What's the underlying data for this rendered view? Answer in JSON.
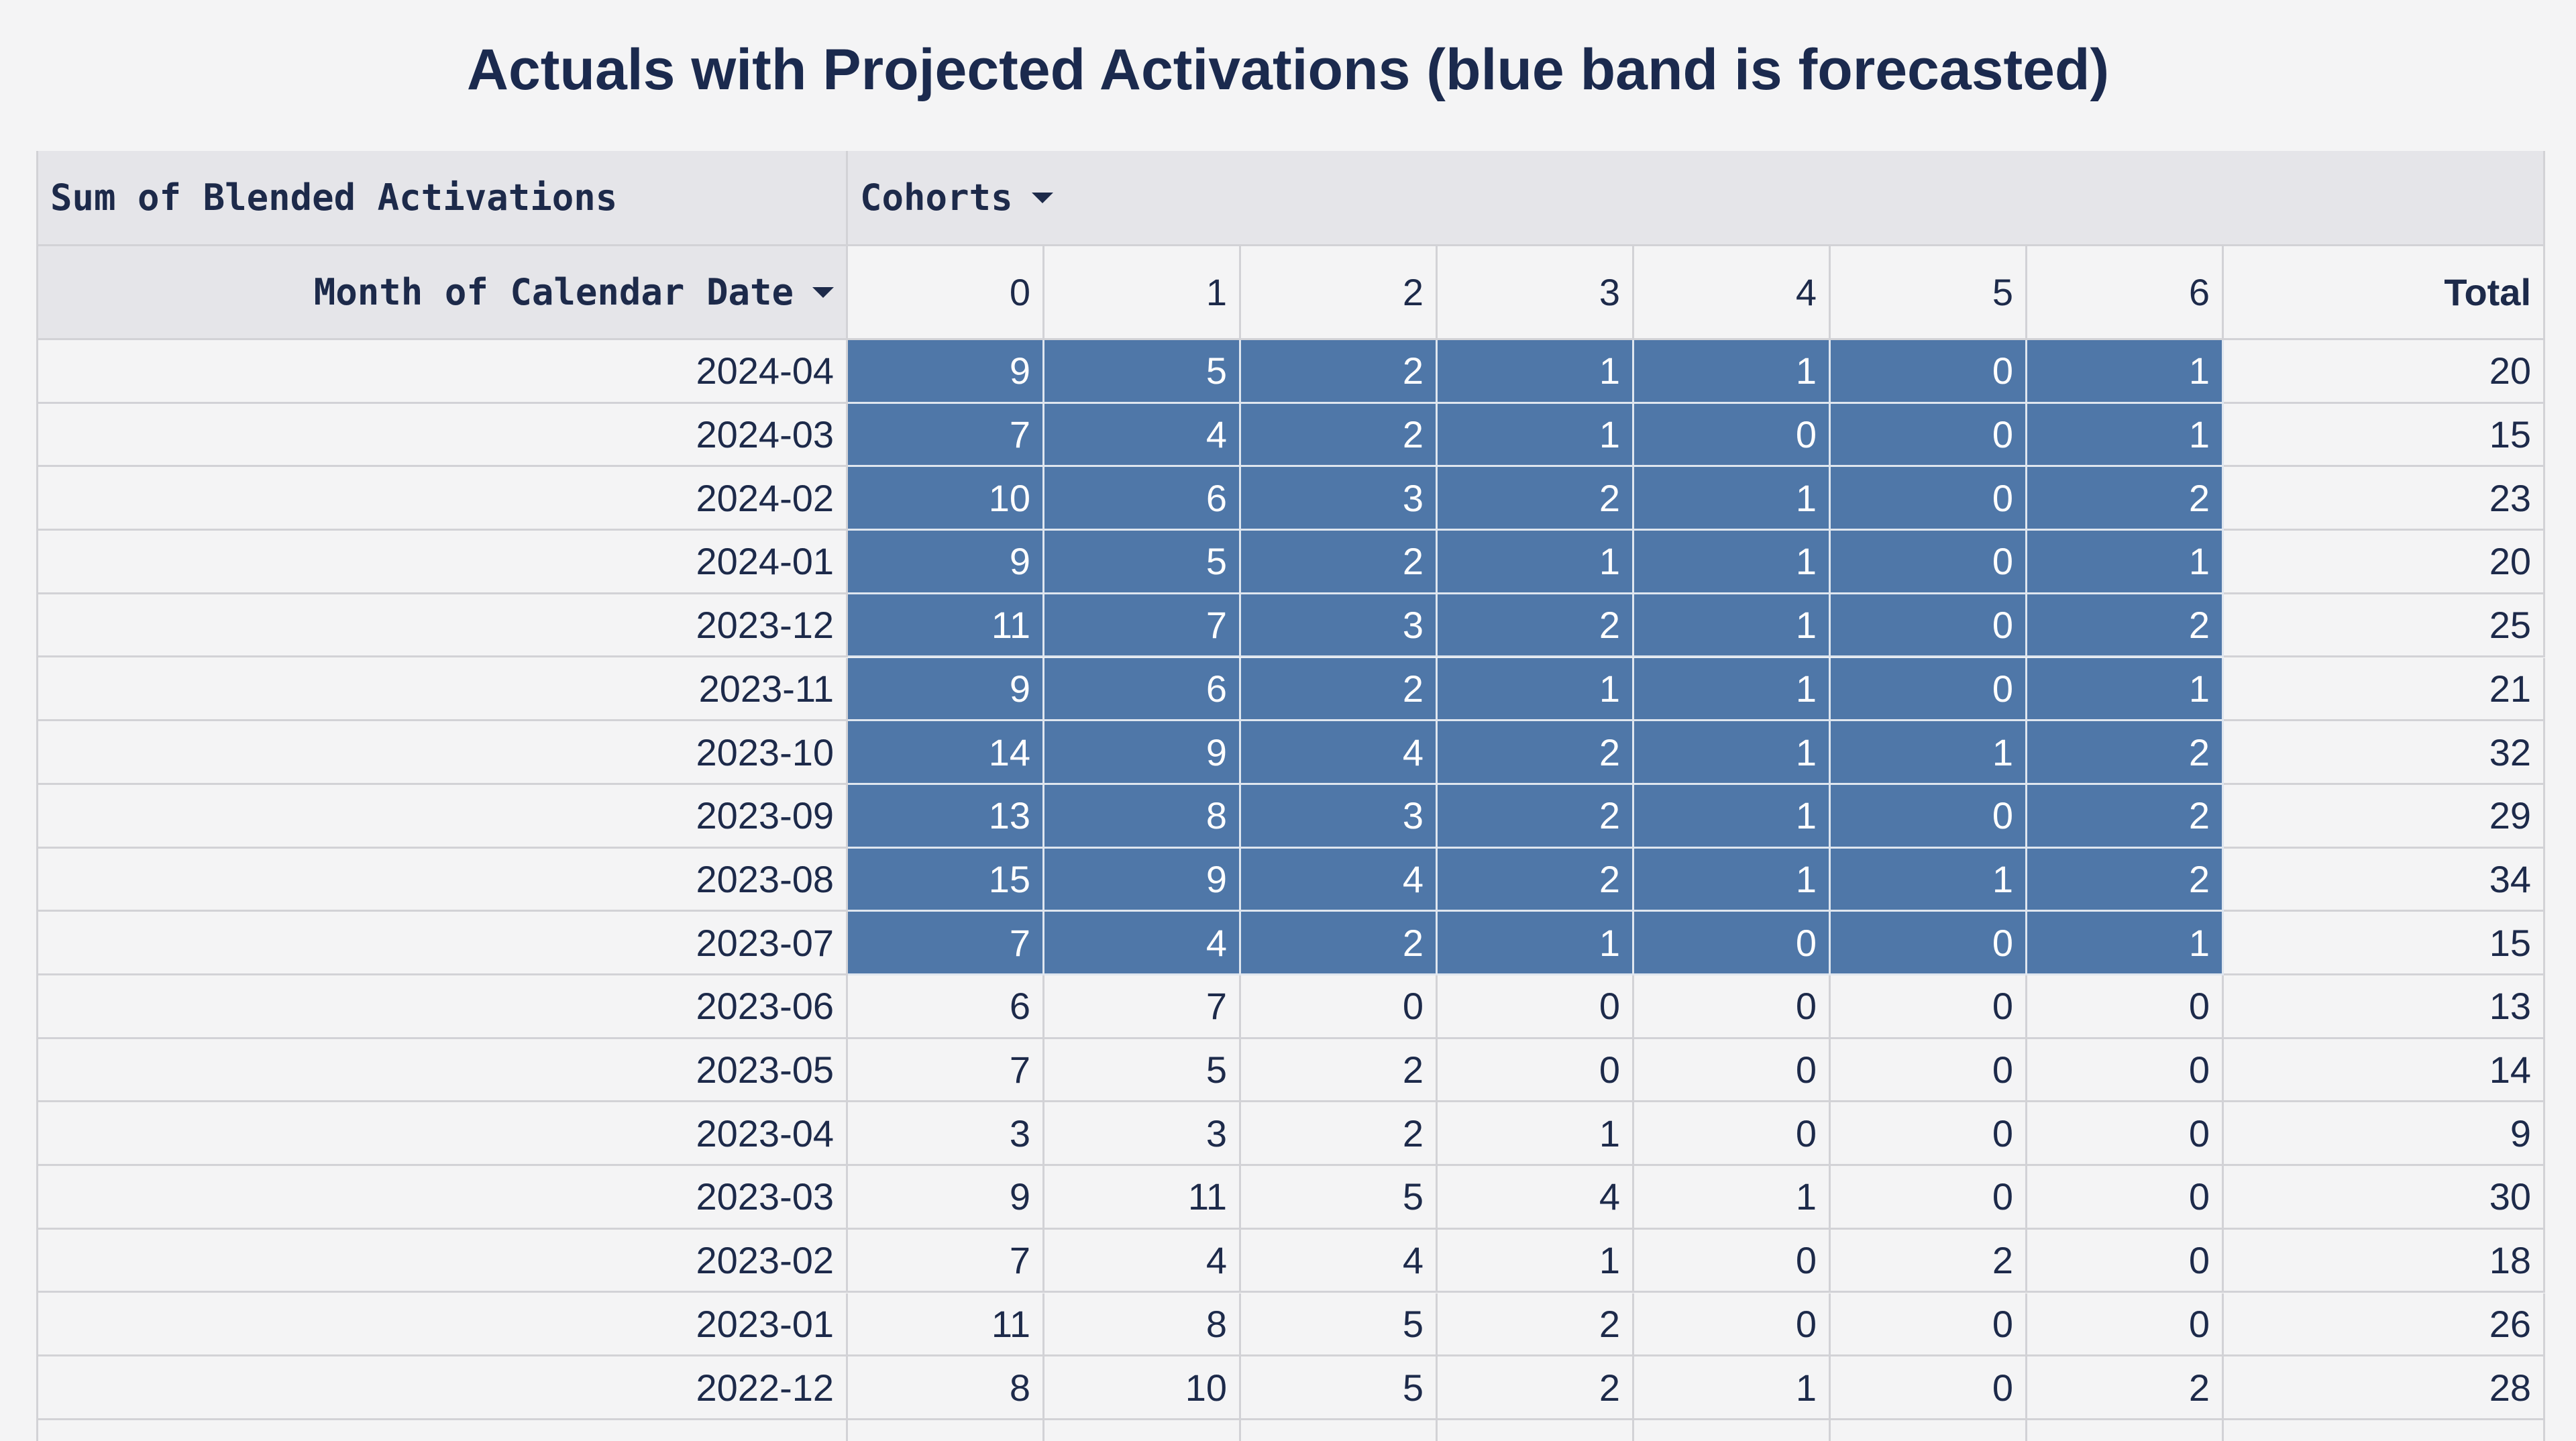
{
  "title": "Actuals with Projected Activations (blue band is forecasted)",
  "table": {
    "measure": "Sum of Blended Activations",
    "column_field": "Cohorts",
    "row_field": "Month of Calendar Date",
    "columns": [
      "0",
      "1",
      "2",
      "3",
      "4",
      "5",
      "6"
    ],
    "total_label": "Total",
    "forecast_color": "#4f77a8",
    "rows": [
      {
        "month": "2024-04",
        "values": [
          9,
          5,
          2,
          1,
          1,
          0,
          1
        ],
        "total": 20,
        "forecast": true
      },
      {
        "month": "2024-03",
        "values": [
          7,
          4,
          2,
          1,
          0,
          0,
          1
        ],
        "total": 15,
        "forecast": true
      },
      {
        "month": "2024-02",
        "values": [
          10,
          6,
          3,
          2,
          1,
          0,
          2
        ],
        "total": 23,
        "forecast": true
      },
      {
        "month": "2024-01",
        "values": [
          9,
          5,
          2,
          1,
          1,
          0,
          1
        ],
        "total": 20,
        "forecast": true
      },
      {
        "month": "2023-12",
        "values": [
          11,
          7,
          3,
          2,
          1,
          0,
          2
        ],
        "total": 25,
        "forecast": true
      },
      {
        "month": "2023-11",
        "values": [
          9,
          6,
          2,
          1,
          1,
          0,
          1
        ],
        "total": 21,
        "forecast": true
      },
      {
        "month": "2023-10",
        "values": [
          14,
          9,
          4,
          2,
          1,
          1,
          2
        ],
        "total": 32,
        "forecast": true
      },
      {
        "month": "2023-09",
        "values": [
          13,
          8,
          3,
          2,
          1,
          0,
          2
        ],
        "total": 29,
        "forecast": true
      },
      {
        "month": "2023-08",
        "values": [
          15,
          9,
          4,
          2,
          1,
          1,
          2
        ],
        "total": 34,
        "forecast": true
      },
      {
        "month": "2023-07",
        "values": [
          7,
          4,
          2,
          1,
          0,
          0,
          1
        ],
        "total": 15,
        "forecast": true
      },
      {
        "month": "2023-06",
        "values": [
          6,
          7,
          0,
          0,
          0,
          0,
          0
        ],
        "total": 13,
        "forecast": false
      },
      {
        "month": "2023-05",
        "values": [
          7,
          5,
          2,
          0,
          0,
          0,
          0
        ],
        "total": 14,
        "forecast": false
      },
      {
        "month": "2023-04",
        "values": [
          3,
          3,
          2,
          1,
          0,
          0,
          0
        ],
        "total": 9,
        "forecast": false
      },
      {
        "month": "2023-03",
        "values": [
          9,
          11,
          5,
          4,
          1,
          0,
          0
        ],
        "total": 30,
        "forecast": false
      },
      {
        "month": "2023-02",
        "values": [
          7,
          4,
          4,
          1,
          0,
          2,
          0
        ],
        "total": 18,
        "forecast": false
      },
      {
        "month": "2023-01",
        "values": [
          11,
          8,
          5,
          2,
          0,
          0,
          0
        ],
        "total": 26,
        "forecast": false
      },
      {
        "month": "2022-12",
        "values": [
          8,
          10,
          5,
          2,
          1,
          0,
          2
        ],
        "total": 28,
        "forecast": false
      }
    ]
  }
}
